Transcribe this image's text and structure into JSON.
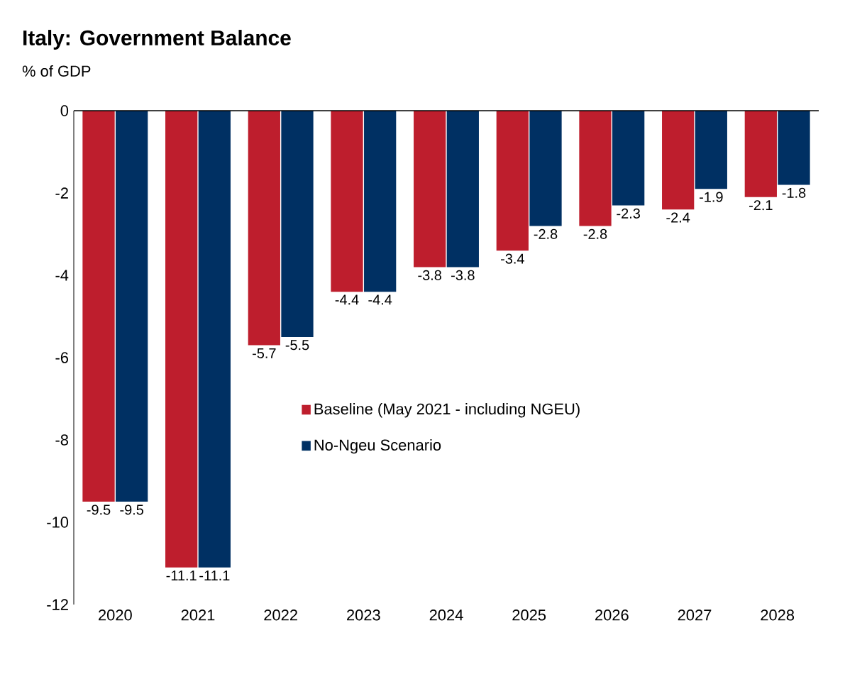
{
  "chart_data": {
    "type": "bar",
    "title": "Italy: Government Balance",
    "ylabel": "% of GDP",
    "categories": [
      "2020",
      "2021",
      "2022",
      "2023",
      "2024",
      "2025",
      "2026",
      "2027",
      "2028"
    ],
    "series": [
      {
        "name": "Baseline (May 2021 - including NGEU)",
        "color": "#be1e2d",
        "values": [
          -9.5,
          -11.1,
          -5.7,
          -4.4,
          -3.8,
          -3.4,
          -2.8,
          -2.4,
          -2.1
        ]
      },
      {
        "name": "No-Ngeu Scenario",
        "color": "#003063",
        "values": [
          -9.5,
          -11.1,
          -5.5,
          -4.4,
          -3.8,
          -2.8,
          -2.3,
          -1.9,
          -1.8
        ]
      }
    ],
    "ylim": [
      -12,
      0
    ],
    "yticks": [
      -12,
      -10,
      -8,
      -6,
      -4,
      -2,
      0
    ],
    "data_labels": true,
    "legend": "right",
    "grid": false
  }
}
